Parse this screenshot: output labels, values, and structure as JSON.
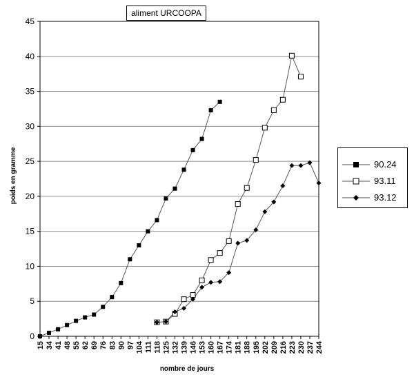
{
  "chart_data": {
    "type": "line",
    "title": "aliment URCOOPA",
    "xlabel": "nombre de jours",
    "ylabel": "poids en gramme",
    "categories": [
      "15",
      "34",
      "41",
      "48",
      "55",
      "62",
      "69",
      "76",
      "83",
      "90",
      "97",
      "104",
      "111",
      "118",
      "125",
      "132",
      "139",
      "146",
      "153",
      "160",
      "167",
      "174",
      "181",
      "188",
      "195",
      "202",
      "209",
      "216",
      "223",
      "230",
      "237",
      "244"
    ],
    "ylim": [
      0,
      45
    ],
    "yticks": [
      0,
      5,
      10,
      15,
      20,
      25,
      30,
      35,
      40,
      45
    ],
    "grid": true,
    "legend_position": "right",
    "series": [
      {
        "name": "90.24",
        "marker": "filled-square",
        "values": [
          0,
          0.5,
          1,
          1.6,
          2.2,
          2.7,
          3.1,
          4.2,
          5.6,
          7.6,
          11,
          13,
          15,
          16.6,
          19.7,
          21.1,
          23.8,
          26.6,
          28.2,
          32.3,
          33.5,
          null,
          null,
          null,
          null,
          null,
          null,
          null,
          null,
          null,
          null,
          null
        ]
      },
      {
        "name": "93.11",
        "marker": "open-square",
        "values": [
          null,
          null,
          null,
          null,
          null,
          null,
          null,
          null,
          null,
          null,
          null,
          null,
          null,
          2,
          2.1,
          3.2,
          5.3,
          5.9,
          8,
          10.9,
          11.9,
          13.6,
          18.9,
          21.2,
          25.2,
          29.8,
          32.3,
          33.8,
          40.1,
          37.1,
          null,
          null
        ]
      },
      {
        "name": "93.12",
        "marker": "filled-diamond",
        "values": [
          null,
          null,
          null,
          null,
          null,
          null,
          null,
          null,
          null,
          null,
          null,
          null,
          null,
          2,
          2.1,
          3.5,
          4,
          5.3,
          7,
          7.7,
          7.8,
          9.1,
          13.3,
          13.7,
          15.2,
          17.8,
          19.2,
          21.5,
          24.4,
          24.4,
          24.8,
          21.9
        ]
      }
    ]
  }
}
